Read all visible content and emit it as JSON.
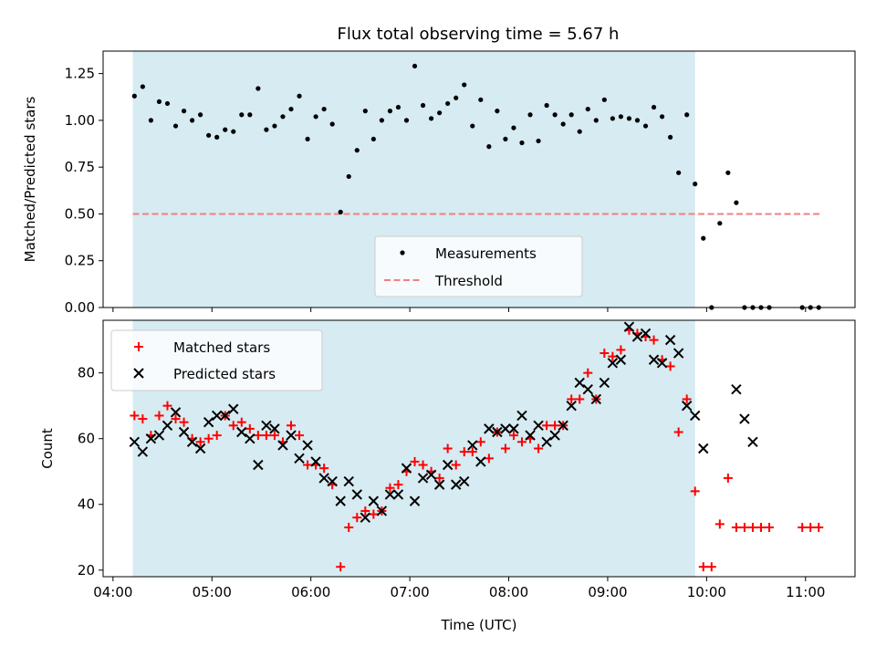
{
  "figure": {
    "title": "Flux total observing time = 5.67 h",
    "observing_window": {
      "start": "04:12",
      "end": "09:53",
      "color": "#add8e6",
      "opacity": 0.5
    }
  },
  "chart_data": [
    {
      "type": "scatter",
      "panel": "top",
      "title": "Flux total observing time = 5.67 h",
      "xlabel": "",
      "ylabel": "Matched/Predicted stars",
      "xlim": [
        "03:54",
        "11:30"
      ],
      "ylim": [
        0,
        1.37
      ],
      "yticks": [
        0,
        0.25,
        0.5,
        0.75,
        1.0,
        1.25
      ],
      "ytick_labels": [
        "0.00",
        "0.25",
        "0.50",
        "0.75",
        "1.00",
        "1.25"
      ],
      "legend_loc": "lower-center",
      "series": [
        {
          "name": "Measurements",
          "marker": "dot",
          "color": "#000000",
          "x": [
            "04:13",
            "04:18",
            "04:23",
            "04:28",
            "04:33",
            "04:38",
            "04:43",
            "04:48",
            "04:53",
            "04:58",
            "05:03",
            "05:08",
            "05:13",
            "05:18",
            "05:23",
            "05:28",
            "05:33",
            "05:38",
            "05:43",
            "05:48",
            "05:53",
            "05:58",
            "06:03",
            "06:08",
            "06:13",
            "06:18",
            "06:23",
            "06:28",
            "06:33",
            "06:38",
            "06:43",
            "06:48",
            "06:53",
            "06:58",
            "07:03",
            "07:08",
            "07:13",
            "07:18",
            "07:23",
            "07:28",
            "07:33",
            "07:38",
            "07:43",
            "07:48",
            "07:53",
            "07:58",
            "08:03",
            "08:08",
            "08:13",
            "08:18",
            "08:23",
            "08:28",
            "08:33",
            "08:38",
            "08:43",
            "08:48",
            "08:53",
            "08:58",
            "09:03",
            "09:08",
            "09:13",
            "09:18",
            "09:23",
            "09:28",
            "09:33",
            "09:38",
            "09:43",
            "09:48",
            "09:53",
            "09:58",
            "10:03",
            "10:08",
            "10:13",
            "10:18",
            "10:23",
            "10:28",
            "10:33",
            "10:38",
            "10:58",
            "11:03",
            "11:08"
          ],
          "y": [
            1.13,
            1.18,
            1.0,
            1.1,
            1.09,
            0.97,
            1.05,
            1.0,
            1.03,
            0.92,
            0.91,
            0.95,
            0.94,
            1.03,
            1.03,
            1.17,
            0.95,
            0.97,
            1.02,
            1.06,
            1.13,
            0.9,
            1.02,
            1.06,
            0.98,
            0.51,
            0.7,
            0.84,
            1.05,
            0.9,
            1.0,
            1.05,
            1.07,
            1.0,
            1.29,
            1.08,
            1.01,
            1.04,
            1.09,
            1.12,
            1.19,
            0.97,
            1.11,
            0.86,
            1.05,
            0.9,
            0.96,
            0.88,
            1.03,
            0.89,
            1.08,
            1.03,
            0.98,
            1.03,
            0.94,
            1.06,
            1.0,
            1.11,
            1.01,
            1.02,
            1.01,
            1.0,
            0.97,
            1.07,
            1.02,
            0.91,
            0.72,
            1.03,
            0.66,
            0.37,
            0.0,
            0.45,
            0.72,
            0.56,
            0.0,
            0.0,
            0.0,
            0.0,
            0.0,
            0.0,
            0.0
          ]
        },
        {
          "name": "Threshold",
          "marker": "dashed-line",
          "color": "#f08080",
          "x": [
            "04:12",
            "11:10"
          ],
          "y": [
            0.5,
            0.5
          ]
        }
      ]
    },
    {
      "type": "scatter",
      "panel": "bottom",
      "xlabel": "Time (UTC)",
      "ylabel": "Count",
      "xlim": [
        "03:54",
        "11:30"
      ],
      "ylim": [
        18,
        96
      ],
      "xticks": [
        "04:00",
        "05:00",
        "06:00",
        "07:00",
        "08:00",
        "09:00",
        "10:00",
        "11:00"
      ],
      "yticks": [
        20,
        40,
        60,
        80
      ],
      "legend_loc": "upper-left",
      "series": [
        {
          "name": "Matched stars",
          "marker": "plus",
          "color": "#ff0000",
          "x": [
            "04:13",
            "04:18",
            "04:23",
            "04:28",
            "04:33",
            "04:38",
            "04:43",
            "04:48",
            "04:53",
            "04:58",
            "05:03",
            "05:08",
            "05:13",
            "05:18",
            "05:23",
            "05:28",
            "05:33",
            "05:38",
            "05:43",
            "05:48",
            "05:53",
            "05:58",
            "06:03",
            "06:08",
            "06:13",
            "06:18",
            "06:23",
            "06:28",
            "06:33",
            "06:38",
            "06:43",
            "06:48",
            "06:53",
            "06:58",
            "07:03",
            "07:08",
            "07:13",
            "07:18",
            "07:23",
            "07:28",
            "07:33",
            "07:38",
            "07:43",
            "07:48",
            "07:53",
            "07:58",
            "08:03",
            "08:08",
            "08:13",
            "08:18",
            "08:23",
            "08:28",
            "08:33",
            "08:38",
            "08:43",
            "08:48",
            "08:53",
            "08:58",
            "09:03",
            "09:08",
            "09:13",
            "09:18",
            "09:23",
            "09:28",
            "09:33",
            "09:38",
            "09:43",
            "09:48",
            "09:53",
            "09:58",
            "10:03",
            "10:08",
            "10:13",
            "10:18",
            "10:23",
            "10:28",
            "10:33",
            "10:38",
            "10:58",
            "11:03",
            "11:08"
          ],
          "y": [
            67,
            66,
            61,
            67,
            70,
            66,
            65,
            60,
            59,
            60,
            61,
            67,
            64,
            65,
            63,
            61,
            61,
            61,
            59,
            64,
            61,
            52,
            52,
            51,
            46,
            21,
            33,
            36,
            38,
            37,
            38,
            45,
            46,
            50,
            53,
            52,
            50,
            48,
            57,
            52,
            56,
            56,
            59,
            54,
            62,
            57,
            61,
            59,
            60,
            57,
            64,
            64,
            64,
            72,
            72,
            80,
            72,
            86,
            85,
            87,
            93,
            92,
            91,
            90,
            84,
            82,
            62,
            72,
            44,
            21,
            21,
            34,
            48,
            33,
            33,
            33,
            33,
            33,
            33,
            33,
            33
          ]
        },
        {
          "name": "Predicted stars",
          "marker": "x",
          "color": "#000000",
          "x": [
            "04:13",
            "04:18",
            "04:23",
            "04:28",
            "04:33",
            "04:38",
            "04:43",
            "04:48",
            "04:53",
            "04:58",
            "05:03",
            "05:08",
            "05:13",
            "05:18",
            "05:23",
            "05:28",
            "05:33",
            "05:38",
            "05:43",
            "05:48",
            "05:53",
            "05:58",
            "06:03",
            "06:08",
            "06:13",
            "06:18",
            "06:23",
            "06:28",
            "06:33",
            "06:38",
            "06:43",
            "06:48",
            "06:53",
            "06:58",
            "07:03",
            "07:08",
            "07:13",
            "07:18",
            "07:23",
            "07:28",
            "07:33",
            "07:38",
            "07:43",
            "07:48",
            "07:53",
            "07:58",
            "08:03",
            "08:08",
            "08:13",
            "08:18",
            "08:23",
            "08:28",
            "08:33",
            "08:38",
            "08:43",
            "08:48",
            "08:53",
            "08:58",
            "09:03",
            "09:08",
            "09:13",
            "09:18",
            "09:23",
            "09:28",
            "09:33",
            "09:38",
            "09:43",
            "09:48",
            "09:53",
            "09:58",
            "10:18",
            "10:23",
            "10:28"
          ],
          "y": [
            59,
            56,
            60,
            61,
            64,
            68,
            62,
            59,
            57,
            65,
            67,
            67,
            69,
            62,
            60,
            52,
            64,
            63,
            58,
            61,
            54,
            58,
            53,
            48,
            47,
            41,
            47,
            43,
            36,
            41,
            38,
            43,
            43,
            51,
            41,
            48,
            49,
            46,
            52,
            46,
            47,
            58,
            53,
            63,
            62,
            63,
            63,
            67,
            61,
            64,
            59,
            61,
            64,
            70,
            77,
            75,
            72,
            77,
            83,
            84,
            94,
            91,
            92,
            84,
            83,
            90,
            86,
            70,
            67,
            57,
            75,
            66,
            59
          ]
        }
      ]
    }
  ]
}
